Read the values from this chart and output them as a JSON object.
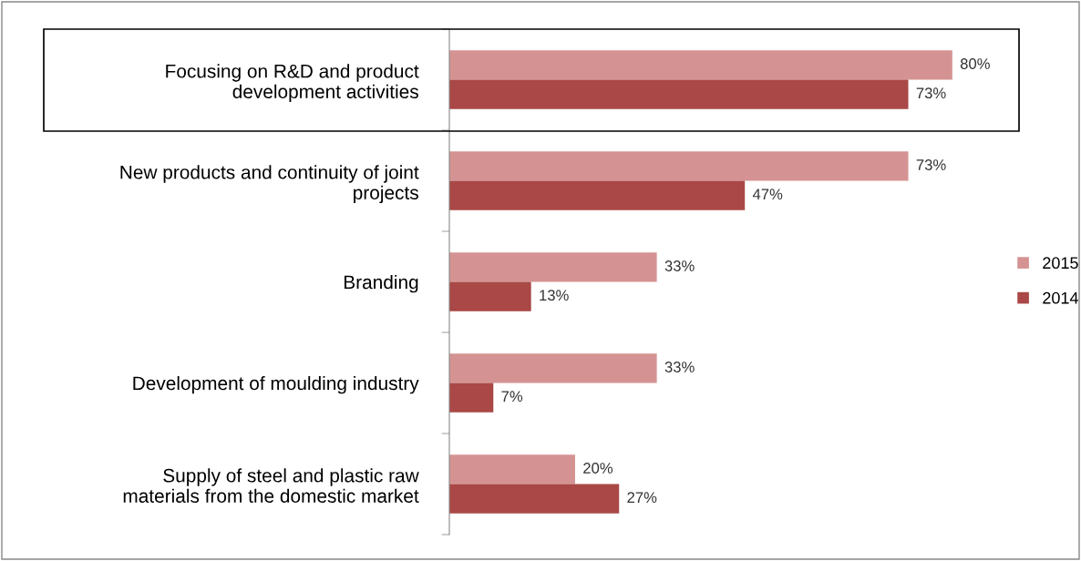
{
  "chart_data": {
    "type": "bar",
    "orientation": "horizontal",
    "categories": [
      "Focusing on R&D and product\ndevelopment activities",
      "New products and continuity of joint\nprojects",
      "Branding",
      "Development of moulding industry",
      "Supply of steel and plastic raw\nmaterials from the domestic market"
    ],
    "series": [
      {
        "name": "2015",
        "color": "#d49392",
        "values": [
          80,
          73,
          33,
          33,
          20
        ],
        "value_labels": [
          "80%",
          "73%",
          "33%",
          "33%",
          "20%"
        ]
      },
      {
        "name": "2014",
        "color": "#a94846",
        "values": [
          73,
          47,
          13,
          7,
          27
        ],
        "value_labels": [
          "73%",
          "47%",
          "13%",
          "7%",
          "27%"
        ]
      }
    ],
    "legend": "right",
    "grid": false
  }
}
